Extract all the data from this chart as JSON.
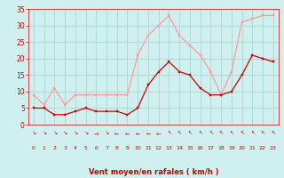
{
  "x": [
    0,
    1,
    2,
    3,
    4,
    5,
    6,
    7,
    8,
    9,
    10,
    11,
    12,
    13,
    14,
    15,
    16,
    17,
    18,
    19,
    20,
    21,
    22,
    23
  ],
  "mean_wind": [
    5,
    5,
    3,
    3,
    4,
    5,
    4,
    4,
    4,
    3,
    5,
    12,
    16,
    19,
    16,
    15,
    11,
    9,
    9,
    10,
    15,
    21,
    20,
    19
  ],
  "gust_wind": [
    9,
    6,
    11,
    6,
    9,
    9,
    9,
    9,
    9,
    9,
    21,
    27,
    30,
    33,
    27,
    24,
    21,
    16,
    9,
    16,
    31,
    32,
    33,
    33
  ],
  "bg_color": "#d0f0f0",
  "grid_color": "#b0d8d8",
  "mean_color": "#cc0000",
  "gust_color": "#ff9999",
  "xlabel": "Vent moyen/en rafales ( km/h )",
  "xlabel_color": "#cc0000",
  "tick_color": "#cc0000",
  "arrow_chars": [
    "↘",
    "↘",
    "↘",
    "↘",
    "↘",
    "↘",
    "→",
    "↘",
    "←",
    "←",
    "←",
    "←",
    "←",
    "↖",
    "↖",
    "↖",
    "↖",
    "↖",
    "↖",
    "↖",
    "↖",
    "↖",
    "↖",
    "↖"
  ],
  "ylim": [
    0,
    35
  ],
  "yticks": [
    0,
    5,
    10,
    15,
    20,
    25,
    30,
    35
  ],
  "xlim": [
    -0.5,
    23.5
  ]
}
